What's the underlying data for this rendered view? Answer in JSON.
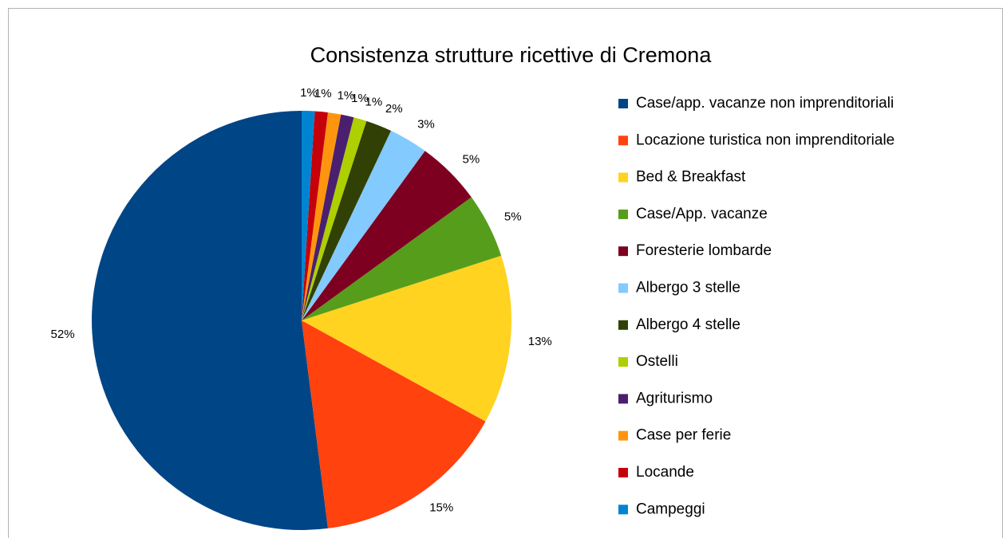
{
  "chart_data": {
    "type": "pie",
    "title": "Consistenza strutture ricettive di Cremona",
    "categories": [
      "Case/app. vacanze non imprenditoriali",
      "Locazione turistica non imprenditoriale",
      "Bed & Breakfast",
      "Case/App. vacanze",
      "Foresterie lombarde",
      "Albergo 3 stelle",
      "Albergo 4 stelle",
      "Ostelli",
      "Agriturismo",
      "Case per ferie",
      "Locande",
      "Campeggi"
    ],
    "values": [
      52,
      15,
      13,
      5,
      5,
      3,
      2,
      1,
      1,
      1,
      1,
      1
    ],
    "value_labels": [
      "52%",
      "15%",
      "13%",
      "5%",
      "5%",
      "3%",
      "2%",
      "1%",
      "1%",
      "1%",
      "1%",
      "1%"
    ],
    "colors": [
      "#004586",
      "#ff420e",
      "#ffd320",
      "#579d1c",
      "#7e0021",
      "#83caff",
      "#314004",
      "#aecf00",
      "#4b1f6f",
      "#ff950e",
      "#c5000b",
      "#0084d1"
    ],
    "legend": "right"
  }
}
